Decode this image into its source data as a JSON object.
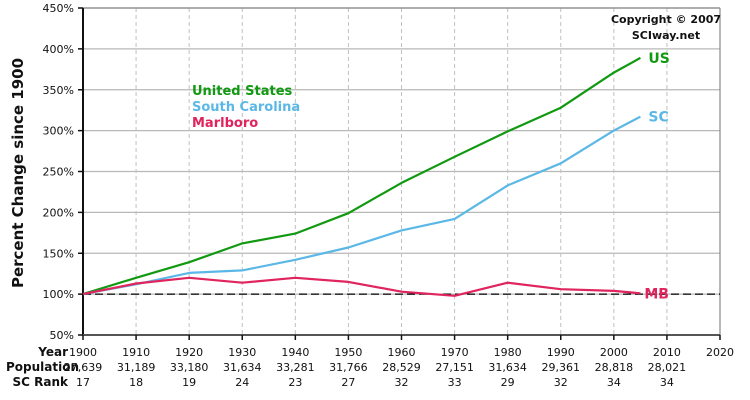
{
  "chart_data": {
    "type": "line",
    "title": "",
    "ylabel": "Percent Change since 1900",
    "xlabel": "Year",
    "ylim": [
      50,
      450
    ],
    "xlim": [
      1900,
      2020
    ],
    "y_ticks": [
      "50%",
      "100%",
      "150%",
      "200%",
      "250%",
      "300%",
      "350%",
      "400%",
      "450%"
    ],
    "y_tick_values": [
      50,
      100,
      150,
      200,
      250,
      300,
      350,
      400,
      450
    ],
    "x_ticks": [
      1900,
      1910,
      1920,
      1930,
      1940,
      1950,
      1960,
      1970,
      1980,
      1990,
      2000,
      2010,
      2020
    ],
    "grid": true,
    "reference_line": {
      "y": 100,
      "style": "dashed",
      "color": "#000000"
    },
    "series": [
      {
        "name": "United States",
        "short": "US",
        "color": "#119911",
        "x": [
          1900,
          1910,
          1920,
          1930,
          1940,
          1950,
          1960,
          1970,
          1980,
          1990,
          2000,
          2005
        ],
        "values": [
          100,
          120,
          139,
          162,
          174,
          199,
          236,
          268,
          299,
          328,
          371,
          389
        ]
      },
      {
        "name": "South Carolina",
        "short": "SC",
        "color": "#5BB8E6",
        "x": [
          1900,
          1910,
          1920,
          1930,
          1940,
          1950,
          1960,
          1970,
          1980,
          1990,
          2000,
          2005
        ],
        "values": [
          100,
          112,
          126,
          129,
          142,
          157,
          178,
          192,
          233,
          260,
          300,
          317
        ]
      },
      {
        "name": "Marlboro",
        "short": "MB",
        "color": "#E0245E",
        "x": [
          1900,
          1910,
          1920,
          1930,
          1940,
          1950,
          1960,
          1970,
          1980,
          1990,
          2000,
          2005
        ],
        "values": [
          100,
          113,
          120,
          114,
          120,
          115,
          103,
          98,
          114,
          106,
          104,
          101
        ]
      }
    ],
    "legend": {
      "position": "upper-left inside",
      "entries": [
        "United States",
        "South Carolina",
        "Marlboro"
      ]
    },
    "annotations": [
      "Copyright © 2007",
      "SCIway.net"
    ],
    "table_rows": {
      "labels": [
        "Year",
        "Population",
        "SC Rank"
      ],
      "years": [
        "1900",
        "1910",
        "1920",
        "1930",
        "1940",
        "1950",
        "1960",
        "1970",
        "1980",
        "1990",
        "2000",
        "2010",
        "2020"
      ],
      "population": [
        "27,639",
        "31,189",
        "33,180",
        "31,634",
        "33,281",
        "31,766",
        "28,529",
        "27,151",
        "31,634",
        "29,361",
        "28,818",
        "28,021",
        ""
      ],
      "sc_rank": [
        "17",
        "18",
        "19",
        "24",
        "23",
        "27",
        "32",
        "33",
        "29",
        "32",
        "34",
        "34",
        ""
      ]
    }
  },
  "copyright": {
    "line1": "Copyright © 2007",
    "line2": "SCIway.net"
  },
  "colors": {
    "axis": "#111111",
    "grid_h": "#b8b8b8",
    "grid_v": "#c0c0c0",
    "frame": "#888888"
  }
}
